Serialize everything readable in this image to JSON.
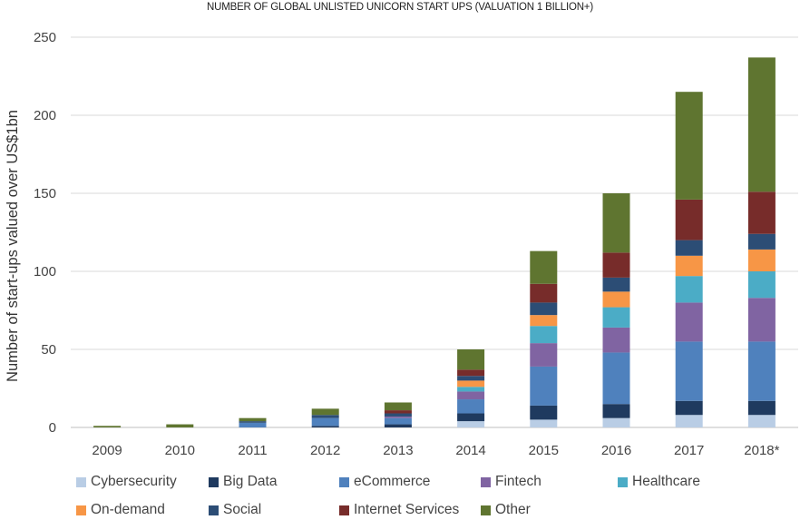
{
  "chart_data": {
    "type": "bar",
    "stacked": true,
    "title": "NUMBER OF GLOBAL UNLISTED UNICORN START UPS (VALUATION 1 BILLION+)",
    "xlabel": "",
    "ylabel": "Number of start-ups valued over US$1bn",
    "ylim": [
      0,
      250
    ],
    "yticks": [
      0,
      50,
      100,
      150,
      200,
      250
    ],
    "grid": true,
    "legend_position": "bottom",
    "categories": [
      "2009",
      "2010",
      "2011",
      "2012",
      "2013",
      "2014",
      "2015",
      "2016",
      "2017",
      "2018*"
    ],
    "series": [
      {
        "name": "Cybersecurity",
        "color": "#b9cde5",
        "values": [
          0,
          0,
          0,
          0,
          0,
          4,
          5,
          6,
          8,
          8
        ]
      },
      {
        "name": "Big Data",
        "color": "#1f3a5f",
        "values": [
          0,
          0,
          0,
          1,
          2,
          5,
          9,
          9,
          9,
          9
        ]
      },
      {
        "name": "eCommerce",
        "color": "#4f81bd",
        "values": [
          0,
          0,
          3,
          5,
          4,
          9,
          25,
          33,
          38,
          38
        ]
      },
      {
        "name": "Fintech",
        "color": "#8064a2",
        "values": [
          0,
          0,
          0,
          0,
          1,
          5,
          15,
          16,
          25,
          28
        ]
      },
      {
        "name": "Healthcare",
        "color": "#4bacc6",
        "values": [
          0,
          0,
          0,
          0,
          0,
          3,
          11,
          13,
          17,
          17
        ]
      },
      {
        "name": "On-demand",
        "color": "#f79646",
        "values": [
          0,
          0,
          0,
          0,
          0,
          4,
          7,
          10,
          13,
          14
        ]
      },
      {
        "name": "Social",
        "color": "#2c4d75",
        "values": [
          0,
          0,
          1,
          2,
          2,
          3,
          8,
          9,
          10,
          10
        ]
      },
      {
        "name": "Internet Services",
        "color": "#772c2a",
        "values": [
          0,
          0,
          0,
          0,
          2,
          4,
          12,
          16,
          26,
          27
        ]
      },
      {
        "name": "Other",
        "color": "#5f7530",
        "values": [
          1,
          2,
          2,
          4,
          5,
          13,
          21,
          38,
          69,
          86
        ]
      }
    ]
  }
}
